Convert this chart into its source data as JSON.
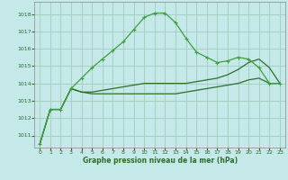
{
  "background_color": "#c5e8e8",
  "grid_color": "#a0ccbe",
  "dark_green": "#2d6e2d",
  "light_green": "#3da03d",
  "xlabel": "Graphe pression niveau de la mer (hPa)",
  "ylim": [
    1010.3,
    1018.7
  ],
  "xlim": [
    -0.5,
    23.5
  ],
  "yticks": [
    1011,
    1012,
    1013,
    1014,
    1015,
    1016,
    1017,
    1018
  ],
  "xticks": [
    0,
    1,
    2,
    3,
    4,
    5,
    6,
    7,
    8,
    9,
    10,
    11,
    12,
    13,
    14,
    15,
    16,
    17,
    18,
    19,
    20,
    21,
    22,
    23
  ],
  "series_peak": [
    1010.5,
    1012.5,
    1012.5,
    1013.7,
    1014.3,
    1014.9,
    1015.4,
    1015.9,
    1016.4,
    1017.1,
    1017.8,
    1018.05,
    1018.05,
    1017.5,
    1016.6,
    1015.8,
    1015.5,
    1015.2,
    1015.3,
    1015.5,
    1015.4,
    1014.9,
    1014.0,
    1014.0
  ],
  "series_diag1": [
    1010.5,
    1012.5,
    1012.5,
    1013.7,
    1013.5,
    1013.5,
    1013.6,
    1013.7,
    1013.8,
    1013.9,
    1014.0,
    1014.0,
    1014.0,
    1014.0,
    1014.0,
    1014.1,
    1014.2,
    1014.3,
    1014.5,
    1014.8,
    1015.2,
    1015.4,
    1014.9,
    1014.0
  ],
  "series_diag2": [
    1010.5,
    1012.5,
    1012.5,
    1013.7,
    1013.5,
    1013.4,
    1013.4,
    1013.4,
    1013.4,
    1013.4,
    1013.4,
    1013.4,
    1013.4,
    1013.4,
    1013.5,
    1013.6,
    1013.7,
    1013.8,
    1013.9,
    1014.0,
    1014.2,
    1014.3,
    1014.0,
    1014.0
  ]
}
